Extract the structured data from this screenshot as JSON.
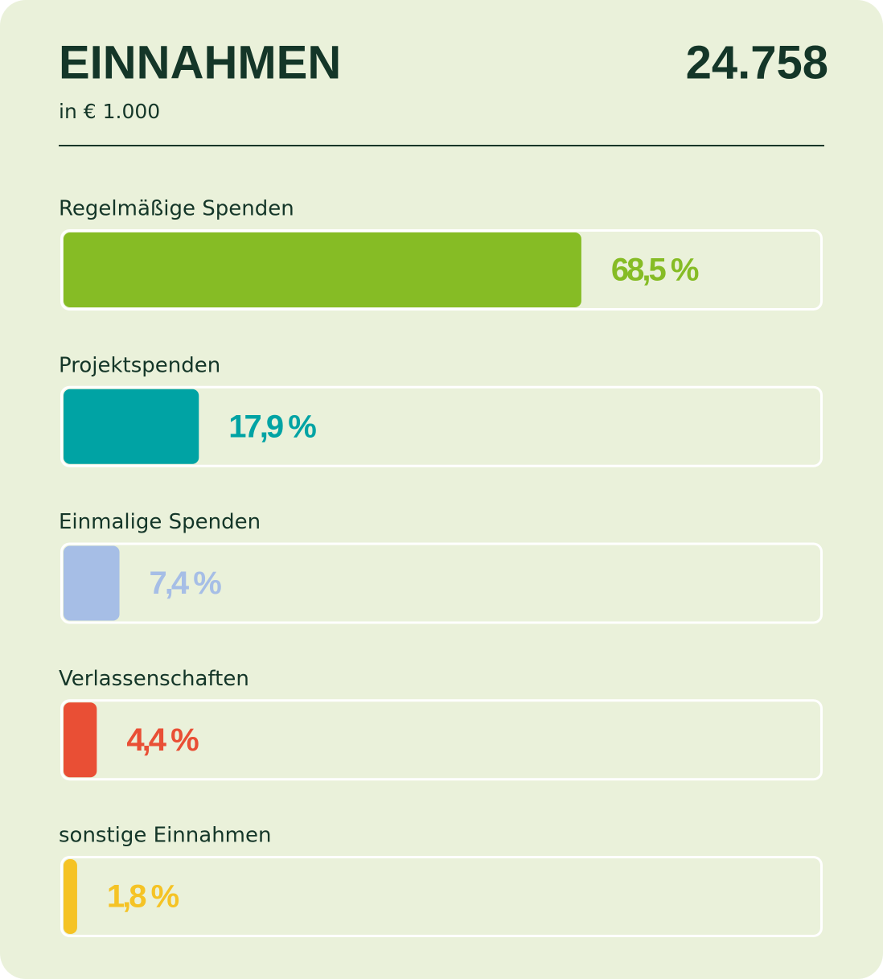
{
  "chart_data": {
    "type": "bar",
    "orientation": "horizontal",
    "title": "EINNAHMEN",
    "total": "24.758",
    "subtitle": "in  € 1.000",
    "categories": [
      "Regelmäßige Spenden",
      "Projektspenden",
      "Einmalige Spenden",
      "Verlassenschaften",
      "sonstige Einnahmen"
    ],
    "values": [
      68.5,
      17.9,
      7.4,
      4.4,
      1.8
    ],
    "value_labels": [
      "68,5 %",
      "17,9 %",
      "7,4 %",
      "4,4 %",
      "1,8 %"
    ],
    "colors": [
      "#86bc25",
      "#00a3a4",
      "#a6bee6",
      "#e94f35",
      "#f5c325"
    ],
    "xlim": [
      0,
      100
    ]
  }
}
